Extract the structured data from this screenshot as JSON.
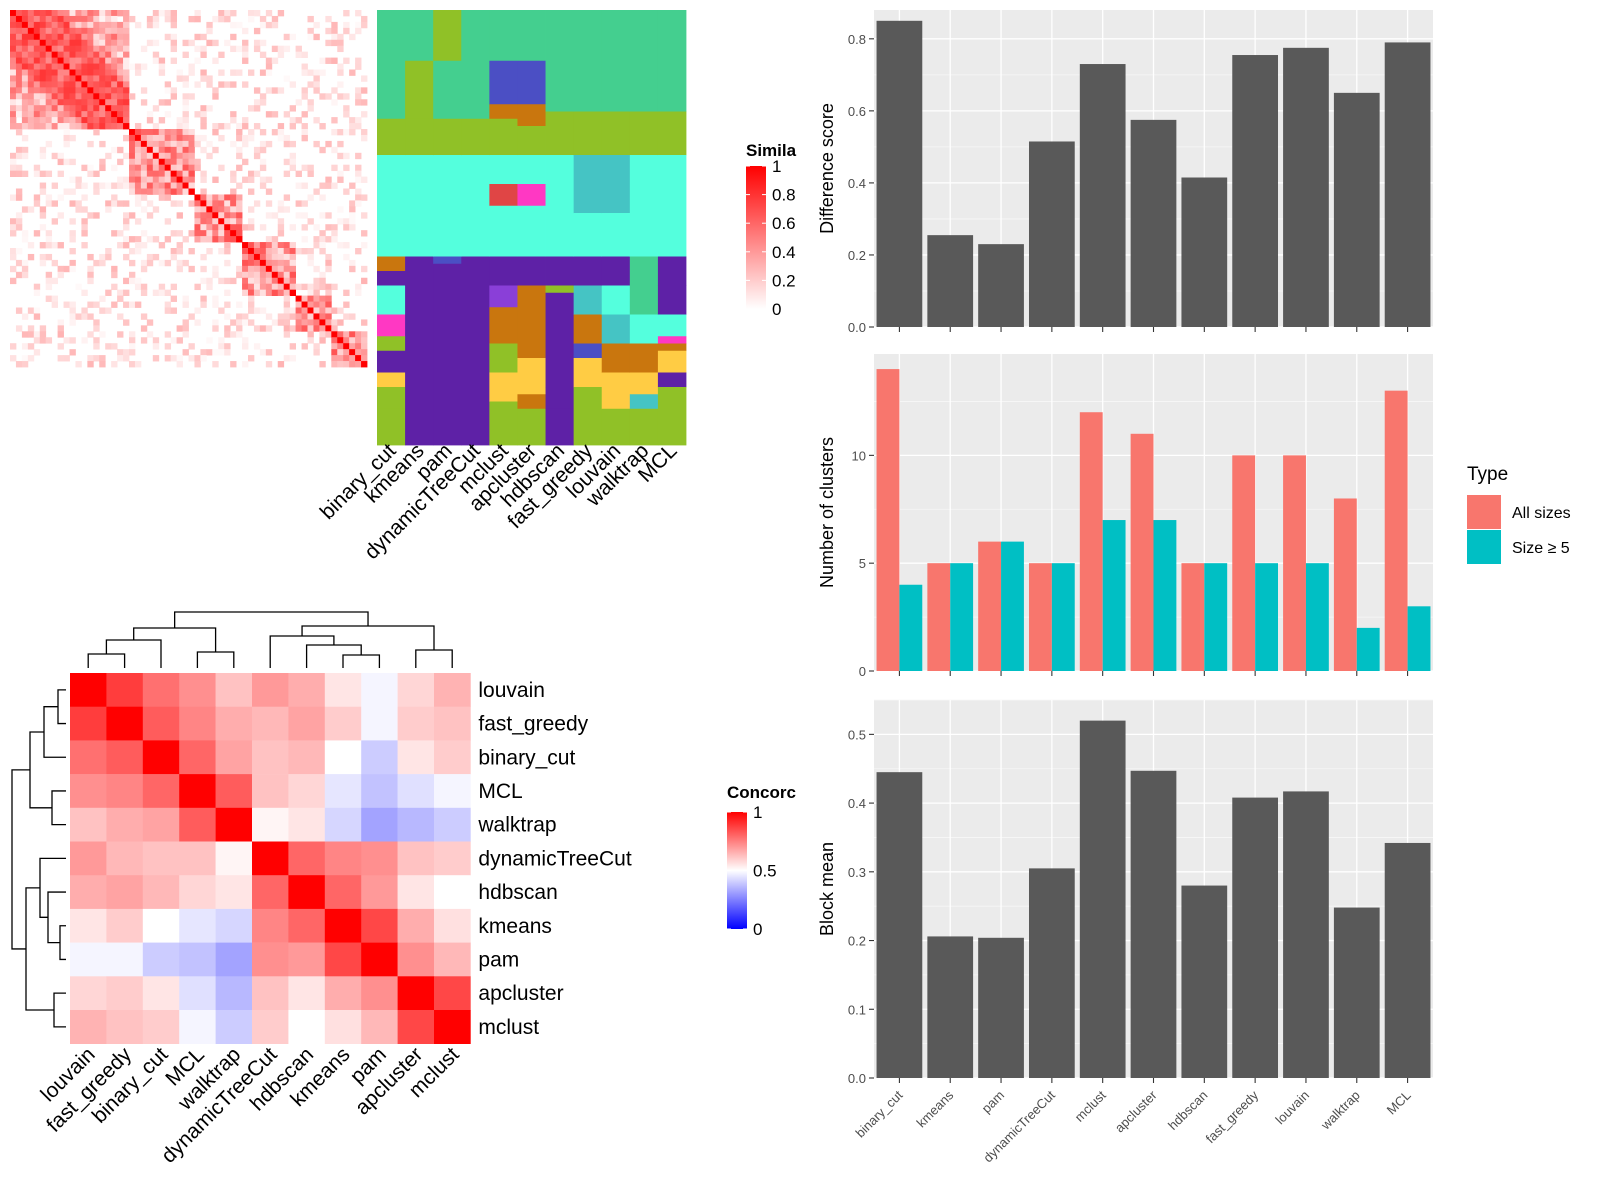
{
  "methods": [
    "binary_cut",
    "kmeans",
    "pam",
    "dynamicTreeCut",
    "mclust",
    "apcluster",
    "hdbscan",
    "fast_greedy",
    "louvain",
    "walktrap",
    "MCL"
  ],
  "similarity_heatmap": {
    "legend_title": "Simila",
    "legend_ticks": [
      "1",
      "0.8",
      "0.6",
      "0.4",
      "0.2",
      "0"
    ],
    "color_high": "#FF0000",
    "color_low": "#FFFFFF"
  },
  "class_palette": [
    "#44CF8F",
    "#90C127",
    "#54FFDD",
    "#4B4FC4",
    "#5E21A6",
    "#E04545",
    "#FF38C3",
    "#C9760E",
    "#FFCC44",
    "#45C4C4",
    "#8A3FD8"
  ],
  "concordance_heatmap": {
    "legend_title": "Concorc",
    "legend_ticks": [
      "1",
      "0.5",
      "0"
    ],
    "color_high": "#FF0000",
    "color_mid": "#FFFFFF",
    "color_low": "#0000FF",
    "row_order": [
      "louvain",
      "fast_greedy",
      "binary_cut",
      "MCL",
      "walktrap",
      "dynamicTreeCut",
      "hdbscan",
      "kmeans",
      "pam",
      "apcluster",
      "mclust"
    ],
    "col_order": [
      "louvain",
      "fast_greedy",
      "binary_cut",
      "MCL",
      "walktrap",
      "dynamicTreeCut",
      "hdbscan",
      "kmeans",
      "pam",
      "apcluster",
      "mclust"
    ]
  },
  "legend": {
    "title": "Type",
    "items": [
      {
        "label": "All sizes",
        "color": "#F8766D"
      },
      {
        "label": "Size ≥ 5",
        "color": "#00BFC4"
      }
    ]
  },
  "chart_data": [
    {
      "type": "bar",
      "ylabel": "Difference score",
      "categories": [
        "binary_cut",
        "kmeans",
        "pam",
        "dynamicTreeCut",
        "mclust",
        "apcluster",
        "hdbscan",
        "fast_greedy",
        "louvain",
        "walktrap",
        "MCL"
      ],
      "values": [
        0.85,
        0.255,
        0.23,
        0.515,
        0.73,
        0.575,
        0.415,
        0.755,
        0.775,
        0.65,
        0.79
      ],
      "ylim": [
        0,
        0.88
      ],
      "yticks": [
        0.0,
        0.2,
        0.4,
        0.6,
        0.8
      ],
      "ytick_labels": [
        "0.0",
        "0.2",
        "0.4",
        "0.6",
        "0.8"
      ],
      "bar_color": "#595959"
    },
    {
      "type": "bar",
      "ylabel": "Number of clusters",
      "categories": [
        "binary_cut",
        "kmeans",
        "pam",
        "dynamicTreeCut",
        "mclust",
        "apcluster",
        "hdbscan",
        "fast_greedy",
        "louvain",
        "walktrap",
        "MCL"
      ],
      "series": [
        {
          "name": "All sizes",
          "values": [
            14,
            5,
            6,
            5,
            12,
            11,
            5,
            10,
            10,
            8,
            13
          ]
        },
        {
          "name": "Size ≥ 5",
          "values": [
            4,
            5,
            6,
            5,
            7,
            7,
            5,
            5,
            5,
            2,
            3
          ]
        }
      ],
      "ylim": [
        0,
        14.7
      ],
      "yticks": [
        0,
        5,
        10
      ],
      "ytick_labels": [
        "0",
        "5",
        "10"
      ]
    },
    {
      "type": "bar",
      "ylabel": "Block mean",
      "categories": [
        "binary_cut",
        "kmeans",
        "pam",
        "dynamicTreeCut",
        "mclust",
        "apcluster",
        "hdbscan",
        "fast_greedy",
        "louvain",
        "walktrap",
        "MCL"
      ],
      "values": [
        0.445,
        0.206,
        0.204,
        0.305,
        0.52,
        0.447,
        0.28,
        0.408,
        0.417,
        0.248,
        0.342
      ],
      "ylim": [
        0,
        0.55
      ],
      "yticks": [
        0.0,
        0.1,
        0.2,
        0.3,
        0.4,
        0.5
      ],
      "ytick_labels": [
        "0.0",
        "0.1",
        "0.2",
        "0.3",
        "0.4",
        "0.5"
      ],
      "xtick_labels": [
        "binary_cut",
        "kmeans",
        "pam",
        "dynamicTreeCut",
        "mclust",
        "apcluster",
        "hdbscan",
        "fast_greedy",
        "louvain",
        "walktrap",
        "MCL"
      ],
      "bar_color": "#595959"
    }
  ]
}
